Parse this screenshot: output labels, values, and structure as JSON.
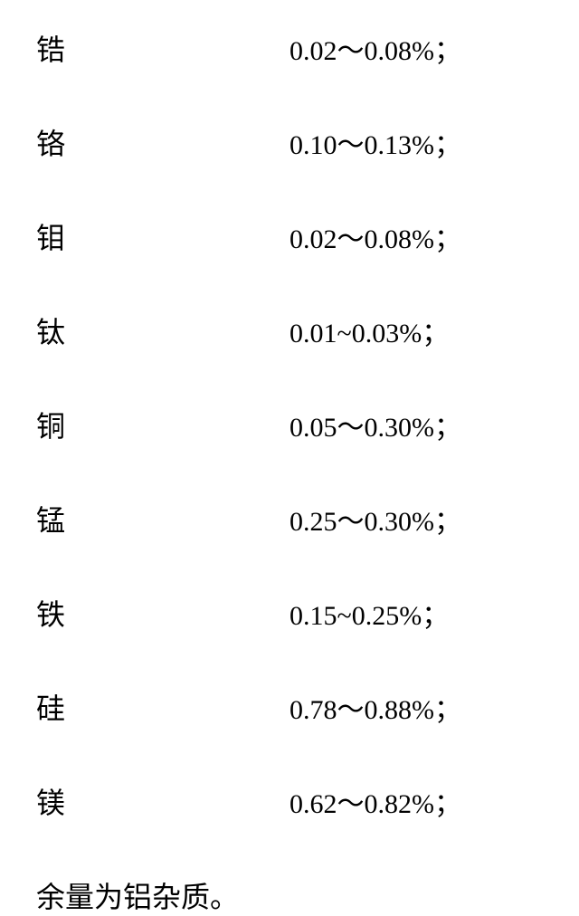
{
  "title_fontsize": 32,
  "value_fontsize": 30,
  "text_color": "#000000",
  "background_color": "#ffffff",
  "rows": [
    {
      "element": "锆",
      "value": "0.02～0.08%；"
    },
    {
      "element": "铬",
      "value": "0.10～0.13%；"
    },
    {
      "element": "钼",
      "value": "0.02～0.08%；"
    },
    {
      "element": "钛",
      "value": "0.01~0.03%；"
    },
    {
      "element": "铜",
      "value": "0.05～0.30%；"
    },
    {
      "element": "锰",
      "value": "0.25～0.30%；"
    },
    {
      "element": "铁",
      "value": "0.15~0.25%；"
    },
    {
      "element": "硅",
      "value": "0.78～0.88%；"
    },
    {
      "element": "镁",
      "value": "0.62～0.82%；"
    }
  ],
  "footer": "余量为铝杂质。"
}
